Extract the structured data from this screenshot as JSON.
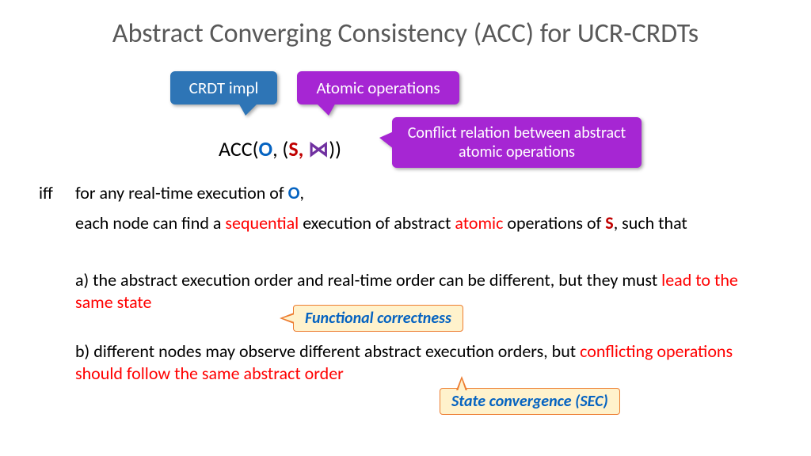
{
  "title": "Abstract Converging Consistency (ACC) for UCR-CRDTs",
  "bubbles": {
    "crdt": "CRDT impl",
    "atomic": "Atomic operations",
    "conflict": "Conflict relation between abstract atomic operations"
  },
  "acc": {
    "prefix": "ACC(",
    "O": "O",
    "mid": ", (",
    "S": "S,",
    "bowtie": " ⋈",
    "suffix": "))"
  },
  "iff": "iff",
  "lines": {
    "l1_a": "for any real-time execution of ",
    "l1_O": "O",
    "l1_b": ",",
    "l2_a": "each node can find a ",
    "l2_seq": "sequential",
    "l2_b": " execution of abstract ",
    "l2_atom": "atomic",
    "l2_c": " operations of ",
    "l2_S": "S",
    "l2_d": ", such that",
    "l3_a": "a) the abstract execution order and real-time order can be different, but they must ",
    "l3_red": "lead to the same state",
    "l4_a": "b) different nodes may observe different abstract execution orders, but ",
    "l4_red": "conflicting operations should follow the same abstract order"
  },
  "callouts": {
    "func": "Functional correctness",
    "sec": "State convergence (SEC)"
  },
  "colors": {
    "title": "#595959",
    "bubble_blue": "#2E75B6",
    "bubble_purple": "#A626D3",
    "blue_text": "#0563C1",
    "red_text": "#C00000",
    "red_highlight": "#FF0000",
    "callout_bg": "#FFF2CC",
    "callout_border": "#ED7D31",
    "bowtie": "#7030A0"
  }
}
